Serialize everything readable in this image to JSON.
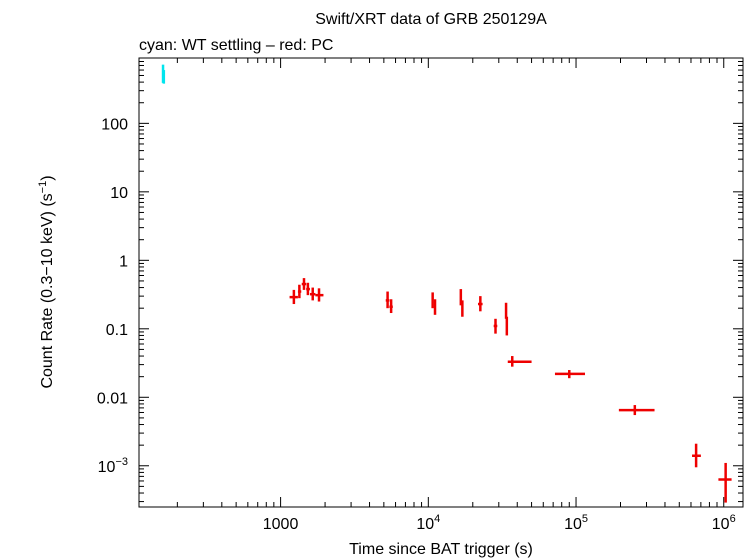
{
  "chart_data": {
    "type": "scatter",
    "title": "Swift/XRT data of GRB 250129A",
    "subtitle": "cyan: WT settling – red: PC",
    "xlabel": "Time since BAT trigger (s)",
    "ylabel": "Count Rate (0.3−10 keV) (s",
    "ylabel_sup": "−1",
    "ylabel_end": ")",
    "x_scale": "log",
    "y_scale": "log",
    "xlim": [
      110,
      1350000
    ],
    "ylim": [
      0.00025,
      900
    ],
    "x_ticks": [
      {
        "value": 1000,
        "label": "1000",
        "sup": ""
      },
      {
        "value": 10000,
        "label": "10",
        "sup": "4"
      },
      {
        "value": 100000,
        "label": "10",
        "sup": "5"
      },
      {
        "value": 1000000,
        "label": "10",
        "sup": "6"
      }
    ],
    "y_ticks": [
      {
        "value": 100,
        "label": "100",
        "sup": ""
      },
      {
        "value": 10,
        "label": "10",
        "sup": ""
      },
      {
        "value": 1,
        "label": "1",
        "sup": ""
      },
      {
        "value": 0.1,
        "label": "0.1",
        "sup": ""
      },
      {
        "value": 0.01,
        "label": "0.01",
        "sup": ""
      },
      {
        "value": 0.001,
        "label": "10",
        "sup": "−3"
      }
    ],
    "series": [
      {
        "color": "#00e5ee",
        "points": [
          {
            "x": 160,
            "xlo": 159,
            "xhi": 161,
            "y": 520,
            "ylo": 390,
            "yhi": 720
          },
          {
            "x": 162,
            "xlo": 161,
            "xhi": 163,
            "y": 460,
            "ylo": 380,
            "yhi": 600
          }
        ]
      },
      {
        "color": "#ee0000",
        "points": [
          {
            "x": 1230,
            "xlo": 1150,
            "xhi": 1310,
            "y": 0.29,
            "ylo": 0.23,
            "yhi": 0.37
          },
          {
            "x": 1340,
            "xlo": 1310,
            "xhi": 1380,
            "y": 0.35,
            "ylo": 0.28,
            "yhi": 0.44
          },
          {
            "x": 1440,
            "xlo": 1390,
            "xhi": 1490,
            "y": 0.45,
            "ylo": 0.37,
            "yhi": 0.55
          },
          {
            "x": 1530,
            "xlo": 1490,
            "xhi": 1580,
            "y": 0.38,
            "ylo": 0.31,
            "yhi": 0.47
          },
          {
            "x": 1650,
            "xlo": 1580,
            "xhi": 1720,
            "y": 0.32,
            "ylo": 0.26,
            "yhi": 0.4
          },
          {
            "x": 1820,
            "xlo": 1720,
            "xhi": 1950,
            "y": 0.31,
            "ylo": 0.25,
            "yhi": 0.39
          },
          {
            "x": 5300,
            "xlo": 5150,
            "xhi": 5450,
            "y": 0.26,
            "ylo": 0.2,
            "yhi": 0.35
          },
          {
            "x": 5600,
            "xlo": 5450,
            "xhi": 5750,
            "y": 0.21,
            "ylo": 0.17,
            "yhi": 0.27
          },
          {
            "x": 10700,
            "xlo": 10550,
            "xhi": 10850,
            "y": 0.26,
            "ylo": 0.2,
            "yhi": 0.34
          },
          {
            "x": 11100,
            "xlo": 10950,
            "xhi": 11250,
            "y": 0.21,
            "ylo": 0.16,
            "yhi": 0.27
          },
          {
            "x": 16600,
            "xlo": 16450,
            "xhi": 16750,
            "y": 0.29,
            "ylo": 0.22,
            "yhi": 0.38
          },
          {
            "x": 17000,
            "xlo": 16850,
            "xhi": 17150,
            "y": 0.2,
            "ylo": 0.15,
            "yhi": 0.26
          },
          {
            "x": 22500,
            "xlo": 21700,
            "xhi": 23300,
            "y": 0.23,
            "ylo": 0.18,
            "yhi": 0.3
          },
          {
            "x": 28500,
            "xlo": 27700,
            "xhi": 29300,
            "y": 0.11,
            "ylo": 0.085,
            "yhi": 0.14
          },
          {
            "x": 33600,
            "xlo": 33300,
            "xhi": 33900,
            "y": 0.18,
            "ylo": 0.14,
            "yhi": 0.24
          },
          {
            "x": 34000,
            "xlo": 33700,
            "xhi": 34300,
            "y": 0.11,
            "ylo": 0.08,
            "yhi": 0.15
          },
          {
            "x": 37000,
            "xlo": 34500,
            "xhi": 50000,
            "y": 0.033,
            "ylo": 0.028,
            "yhi": 0.04
          },
          {
            "x": 90000,
            "xlo": 72000,
            "xhi": 115000,
            "y": 0.022,
            "ylo": 0.019,
            "yhi": 0.025
          },
          {
            "x": 250000,
            "xlo": 195000,
            "xhi": 340000,
            "y": 0.0065,
            "ylo": 0.0055,
            "yhi": 0.0077
          },
          {
            "x": 650000,
            "xlo": 610000,
            "xhi": 700000,
            "y": 0.0014,
            "ylo": 0.00095,
            "yhi": 0.0021
          },
          {
            "x": 1030000,
            "xlo": 920000,
            "xhi": 1130000,
            "y": 0.00063,
            "ylo": 0.00029,
            "yhi": 0.0011
          }
        ]
      }
    ]
  }
}
